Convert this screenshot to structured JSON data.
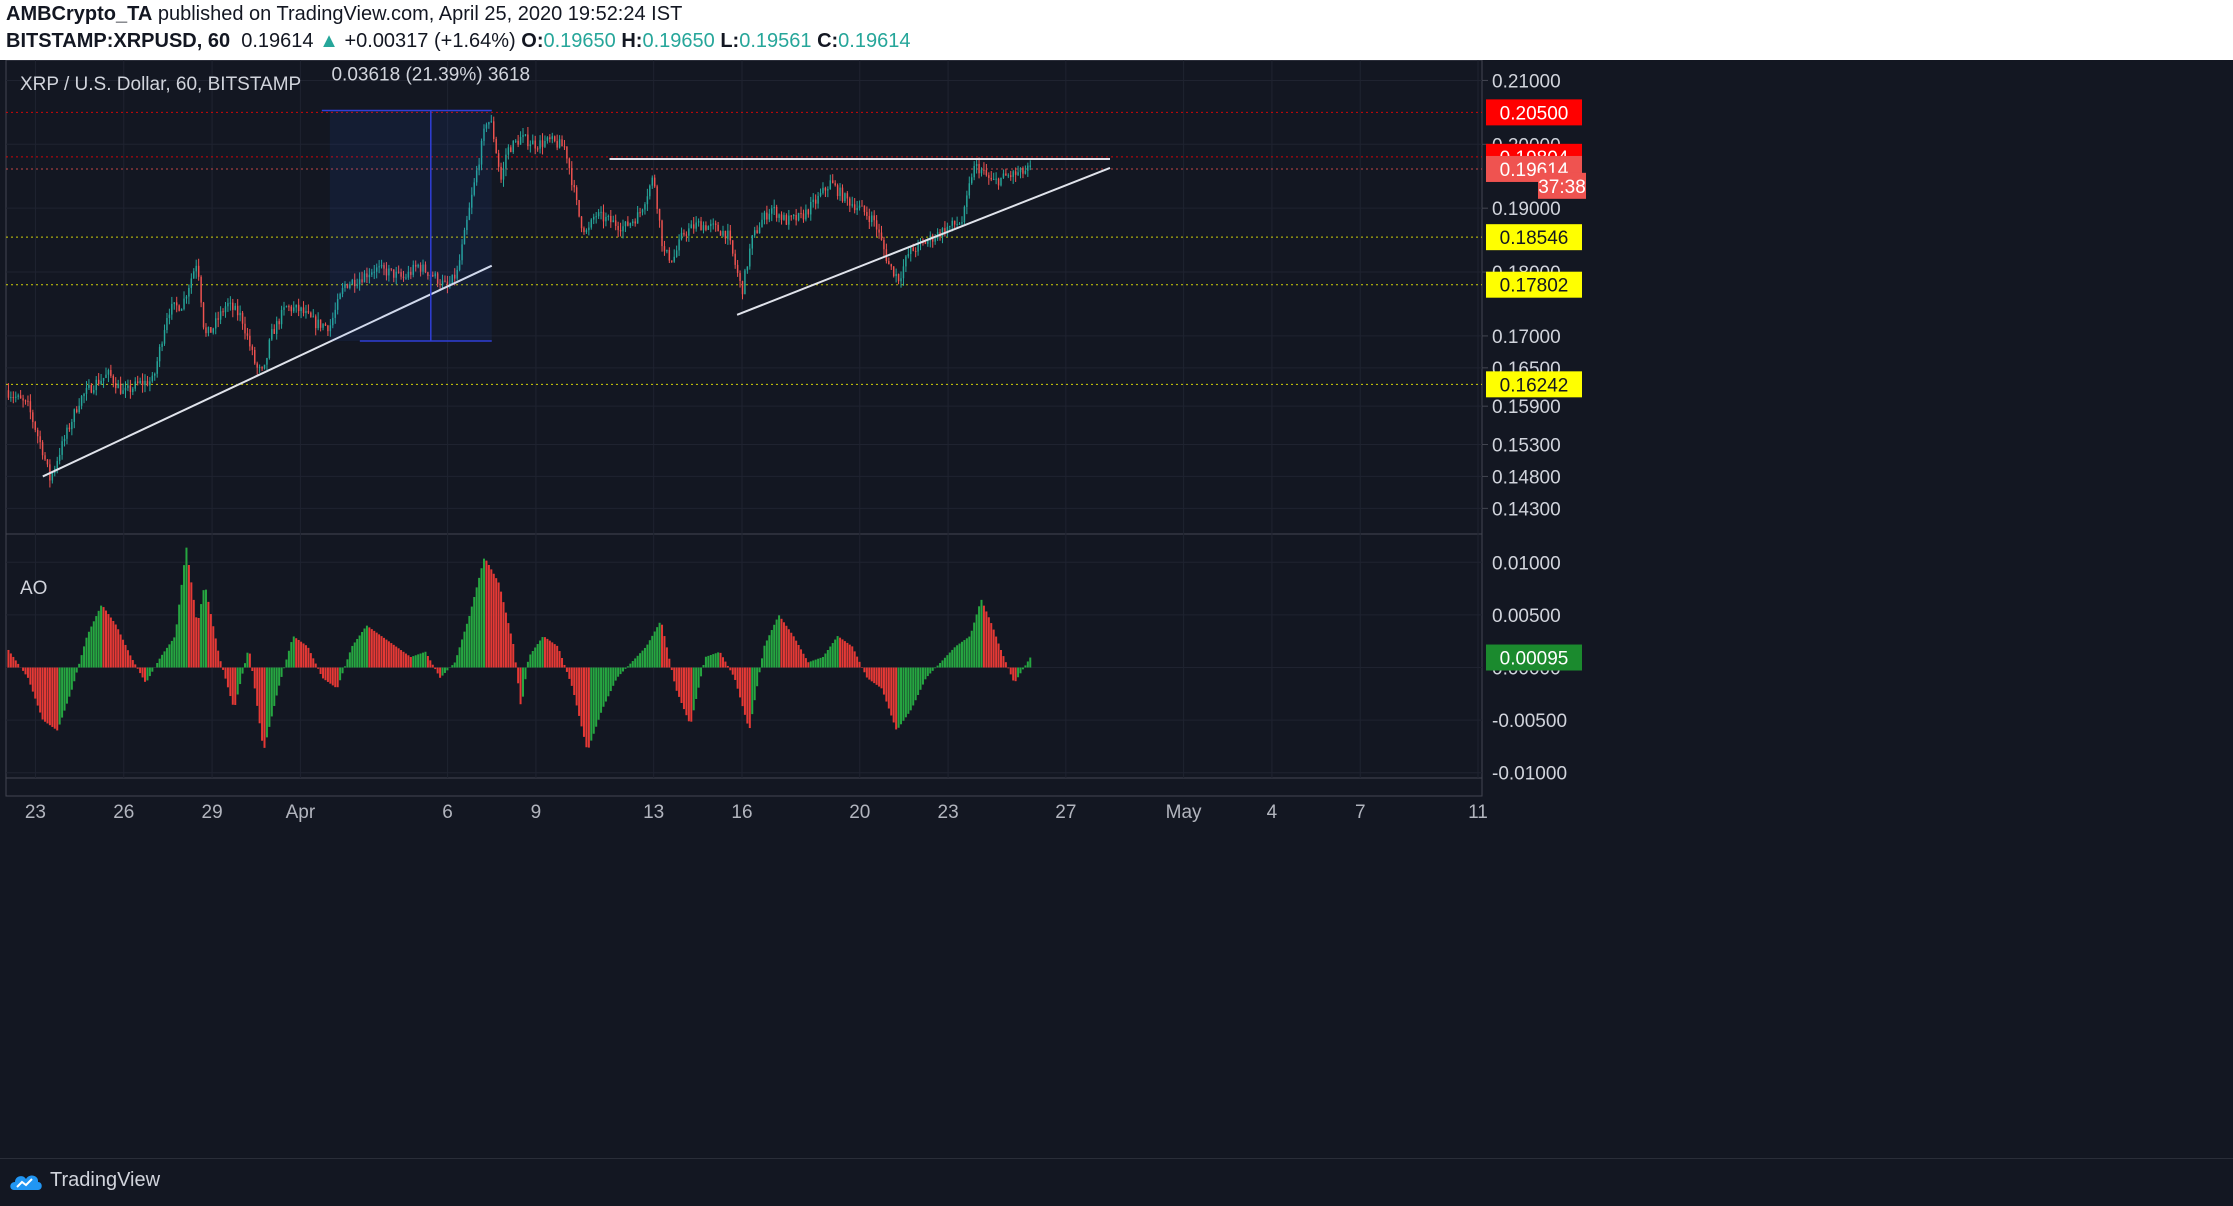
{
  "header": {
    "author": "AMBCrypto_TA",
    "published_text": "published on TradingView.com, April 25, 2020 19:52:24 IST",
    "symbol": "BITSTAMP:XRPUSD, 60",
    "last": "0.19614",
    "arrow": "▲",
    "change": "+0.00317 (+1.64%)",
    "o_label": "O:",
    "o_val": "0.19650",
    "h_label": "H:",
    "h_val": "0.19650",
    "l_label": "L:",
    "l_val": "0.19561",
    "c_label": "C:",
    "c_val": "0.19614"
  },
  "footer": {
    "brand": "TradingView"
  },
  "colors": {
    "background": "#131722",
    "up": "#26a69a",
    "down": "#ef5350",
    "ao_up": "#26a641",
    "ao_down": "#e53935",
    "red_label": "#ff0000",
    "yellow_label": "#ffff00"
  },
  "chart_data": [
    {
      "type": "candlestick",
      "title": "XRP / U.S. Dollar, 60, BITSTAMP",
      "ylim": [
        0.1393,
        0.2132
      ],
      "y_ticks": [
        "0.21000",
        "0.20000",
        "0.19000",
        "0.18000",
        "0.17000",
        "0.16500",
        "0.15900",
        "0.15300",
        "0.14800",
        "0.14300"
      ],
      "x_ticks": [
        "23",
        "26",
        "29",
        "Apr",
        "6",
        "9",
        "13",
        "16",
        "20",
        "23",
        "27",
        "May",
        "4",
        "7",
        "11"
      ],
      "x_tick_dates": [
        "2020-03-23",
        "2020-03-26",
        "2020-03-29",
        "2020-04-01",
        "2020-04-06",
        "2020-04-09",
        "2020-04-13",
        "2020-04-16",
        "2020-04-20",
        "2020-04-23",
        "2020-04-27",
        "2020-05-01",
        "2020-05-04",
        "2020-05-07",
        "2020-05-11"
      ],
      "x_range": [
        "2020-03-22",
        "2020-05-11"
      ],
      "price_points": [
        {
          "t": "2020-03-22",
          "p": 0.1615
        },
        {
          "t": "2020-03-22T18:00",
          "p": 0.159
        },
        {
          "t": "2020-03-23T06:00",
          "p": 0.152
        },
        {
          "t": "2020-03-23T12:00",
          "p": 0.1475
        },
        {
          "t": "2020-03-23T20:00",
          "p": 0.152
        },
        {
          "t": "2020-03-24T12:00",
          "p": 0.16
        },
        {
          "t": "2020-03-25",
          "p": 0.1625
        },
        {
          "t": "2020-03-25T12:00",
          "p": 0.164
        },
        {
          "t": "2020-03-26",
          "p": 0.161
        },
        {
          "t": "2020-03-26T12:00",
          "p": 0.1625
        },
        {
          "t": "2020-03-27",
          "p": 0.163
        },
        {
          "t": "2020-03-27T12:00",
          "p": 0.174
        },
        {
          "t": "2020-03-28",
          "p": 0.175
        },
        {
          "t": "2020-03-28T12:00",
          "p": 0.182
        },
        {
          "t": "2020-03-28T18:00",
          "p": 0.17
        },
        {
          "t": "2020-03-29",
          "p": 0.171
        },
        {
          "t": "2020-03-29T12:00",
          "p": 0.175
        },
        {
          "t": "2020-03-30",
          "p": 0.173
        },
        {
          "t": "2020-03-30T12:00",
          "p": 0.165
        },
        {
          "t": "2020-03-30T18:00",
          "p": 0.164
        },
        {
          "t": "2020-03-31",
          "p": 0.17
        },
        {
          "t": "2020-03-31T12:00",
          "p": 0.1745
        },
        {
          "t": "2020-04-01",
          "p": 0.174
        },
        {
          "t": "2020-04-01T12:00",
          "p": 0.172
        },
        {
          "t": "2020-04-02",
          "p": 0.1715
        },
        {
          "t": "2020-04-02T12:00",
          "p": 0.178
        },
        {
          "t": "2020-04-03",
          "p": 0.179
        },
        {
          "t": "2020-04-03T12:00",
          "p": 0.1805
        },
        {
          "t": "2020-04-04",
          "p": 0.18
        },
        {
          "t": "2020-04-04T12:00",
          "p": 0.179
        },
        {
          "t": "2020-04-05",
          "p": 0.181
        },
        {
          "t": "2020-04-05T12:00",
          "p": 0.1795
        },
        {
          "t": "2020-04-06",
          "p": 0.1775
        },
        {
          "t": "2020-04-06T08:00",
          "p": 0.18
        },
        {
          "t": "2020-04-06T16:00",
          "p": 0.188
        },
        {
          "t": "2020-04-07",
          "p": 0.196
        },
        {
          "t": "2020-04-07T08:00",
          "p": 0.204
        },
        {
          "t": "2020-04-07T12:00",
          "p": 0.203
        },
        {
          "t": "2020-04-07T20:00",
          "p": 0.194
        },
        {
          "t": "2020-04-08",
          "p": 0.199
        },
        {
          "t": "2020-04-08T12:00",
          "p": 0.201
        },
        {
          "t": "2020-04-09",
          "p": 0.2
        },
        {
          "t": "2020-04-09T12:00",
          "p": 0.2005
        },
        {
          "t": "2020-04-10",
          "p": 0.1995
        },
        {
          "t": "2020-04-10T12:00",
          "p": 0.188
        },
        {
          "t": "2020-04-10T18:00",
          "p": 0.186
        },
        {
          "t": "2020-04-11",
          "p": 0.189
        },
        {
          "t": "2020-04-11T12:00",
          "p": 0.188
        },
        {
          "t": "2020-04-12",
          "p": 0.187
        },
        {
          "t": "2020-04-12T12:00",
          "p": 0.189
        },
        {
          "t": "2020-04-13",
          "p": 0.195
        },
        {
          "t": "2020-04-13T08:00",
          "p": 0.183
        },
        {
          "t": "2020-04-13T16:00",
          "p": 0.182
        },
        {
          "t": "2020-04-14",
          "p": 0.186
        },
        {
          "t": "2020-04-14T12:00",
          "p": 0.1875
        },
        {
          "t": "2020-04-15",
          "p": 0.187
        },
        {
          "t": "2020-04-15T12:00",
          "p": 0.186
        },
        {
          "t": "2020-04-16",
          "p": 0.177
        },
        {
          "t": "2020-04-16T08:00",
          "p": 0.185
        },
        {
          "t": "2020-04-16T16:00",
          "p": 0.188
        },
        {
          "t": "2020-04-17",
          "p": 0.19
        },
        {
          "t": "2020-04-17T12:00",
          "p": 0.188
        },
        {
          "t": "2020-04-18",
          "p": 0.1885
        },
        {
          "t": "2020-04-18T12:00",
          "p": 0.191
        },
        {
          "t": "2020-04-19",
          "p": 0.194
        },
        {
          "t": "2020-04-19T12:00",
          "p": 0.1915
        },
        {
          "t": "2020-04-20",
          "p": 0.19
        },
        {
          "t": "2020-04-20T12:00",
          "p": 0.188
        },
        {
          "t": "2020-04-21",
          "p": 0.181
        },
        {
          "t": "2020-04-21T08:00",
          "p": 0.179
        },
        {
          "t": "2020-04-21T16:00",
          "p": 0.183
        },
        {
          "t": "2020-04-22",
          "p": 0.184
        },
        {
          "t": "2020-04-22T12:00",
          "p": 0.1855
        },
        {
          "t": "2020-04-23",
          "p": 0.187
        },
        {
          "t": "2020-04-23T12:00",
          "p": 0.188
        },
        {
          "t": "2020-04-23T20:00",
          "p": 0.196
        },
        {
          "t": "2020-04-24",
          "p": 0.1965
        },
        {
          "t": "2020-04-24T12:00",
          "p": 0.194
        },
        {
          "t": "2020-04-25",
          "p": 0.195
        },
        {
          "t": "2020-04-25T12:00",
          "p": 0.1955
        },
        {
          "t": "2020-04-25T19:00",
          "p": 0.19614
        }
      ],
      "price_labels": [
        {
          "text": "0.20500",
          "value": 0.205,
          "color": "#ff0000"
        },
        {
          "text": "0.19804",
          "value": 0.19804,
          "color": "#ff0000"
        },
        {
          "text": "0.19614",
          "value": 0.19614,
          "color": "#ef5350"
        },
        {
          "text": "37:38",
          "value": 0.1935,
          "color": "#ef5350"
        },
        {
          "text": "0.18546",
          "value": 0.18546,
          "color": "#ffff00"
        },
        {
          "text": "0.17802",
          "value": 0.17802,
          "color": "#ffff00"
        },
        {
          "text": "0.16242",
          "value": 0.16242,
          "color": "#ffff00"
        }
      ],
      "horizontal_levels": [
        {
          "value": 0.205,
          "color": "#ff0000"
        },
        {
          "value": 0.19804,
          "color": "#ff0000"
        },
        {
          "value": 0.19614,
          "color": "#ef5350"
        },
        {
          "value": 0.18546,
          "color": "#ffff00"
        },
        {
          "value": 0.17802,
          "color": "#ffff00"
        },
        {
          "value": 0.16242,
          "color": "#ffff00"
        }
      ],
      "trendlines": [
        {
          "from": {
            "t": "2020-03-23T06:00",
            "p": 0.148
          },
          "to": {
            "t": "2020-04-07T12:00",
            "p": 0.181
          }
        },
        {
          "from": {
            "t": "2020-04-15T20:00",
            "p": 0.1733
          },
          "to": {
            "t": "2020-04-28T12:00",
            "p": 0.1963
          }
        },
        {
          "from": {
            "t": "2020-04-11T12:00",
            "p": 0.1977
          },
          "to": {
            "t": "2020-04-28T12:00",
            "p": 0.1977
          }
        }
      ],
      "measure": {
        "label": "0.03618 (21.39%) 3618",
        "from": {
          "t": "2020-04-02",
          "p": 0.1692
        },
        "to": {
          "t": "2020-04-07T12:00",
          "p": 0.2053
        }
      }
    },
    {
      "type": "bar",
      "title": "AO",
      "ylim": [
        -0.0105,
        0.0125
      ],
      "y_ticks": [
        "0.01000",
        "0.00500",
        "0.00000",
        "-0.00500",
        "-0.01000"
      ],
      "last_value_label": "0.00095",
      "points": [
        {
          "t": "2020-03-22",
          "v": 0.002
        },
        {
          "t": "2020-03-22T18:00",
          "v": -0.001
        },
        {
          "t": "2020-03-23T06:00",
          "v": -0.005
        },
        {
          "t": "2020-03-23T18:00",
          "v": -0.006
        },
        {
          "t": "2020-03-24T06:00",
          "v": -0.002
        },
        {
          "t": "2020-03-24T18:00",
          "v": 0.003
        },
        {
          "t": "2020-03-25T06:00",
          "v": 0.006
        },
        {
          "t": "2020-03-25T18:00",
          "v": 0.004
        },
        {
          "t": "2020-03-26T06:00",
          "v": 0.001
        },
        {
          "t": "2020-03-26T18:00",
          "v": -0.0015
        },
        {
          "t": "2020-03-27T06:00",
          "v": 0.001
        },
        {
          "t": "2020-03-27T18:00",
          "v": 0.003
        },
        {
          "t": "2020-03-28T03:00",
          "v": 0.0115
        },
        {
          "t": "2020-03-28T12:00",
          "v": 0.004
        },
        {
          "t": "2020-03-28T18:00",
          "v": 0.008
        },
        {
          "t": "2020-03-29T06:00",
          "v": 0.001
        },
        {
          "t": "2020-03-29T18:00",
          "v": -0.004
        },
        {
          "t": "2020-03-30T06:00",
          "v": 0.002
        },
        {
          "t": "2020-03-30T18:00",
          "v": -0.008
        },
        {
          "t": "2020-03-31T06:00",
          "v": -0.002
        },
        {
          "t": "2020-03-31T18:00",
          "v": 0.003
        },
        {
          "t": "2020-04-01T06:00",
          "v": 0.002
        },
        {
          "t": "2020-04-01T18:00",
          "v": -0.001
        },
        {
          "t": "2020-04-02T06:00",
          "v": -0.002
        },
        {
          "t": "2020-04-02T18:00",
          "v": 0.002
        },
        {
          "t": "2020-04-03T06:00",
          "v": 0.004
        },
        {
          "t": "2020-04-03T18:00",
          "v": 0.003
        },
        {
          "t": "2020-04-04T06:00",
          "v": 0.002
        },
        {
          "t": "2020-04-04T18:00",
          "v": 0.001
        },
        {
          "t": "2020-04-05T06:00",
          "v": 0.0015
        },
        {
          "t": "2020-04-05T18:00",
          "v": -0.001
        },
        {
          "t": "2020-04-06T06:00",
          "v": 0.0005
        },
        {
          "t": "2020-04-06T18:00",
          "v": 0.005
        },
        {
          "t": "2020-04-07T06:00",
          "v": 0.0105
        },
        {
          "t": "2020-04-07T18:00",
          "v": 0.008
        },
        {
          "t": "2020-04-08T06:00",
          "v": 0.002
        },
        {
          "t": "2020-04-08T12:00",
          "v": -0.004
        },
        {
          "t": "2020-04-08T18:00",
          "v": 0.001
        },
        {
          "t": "2020-04-09T06:00",
          "v": 0.003
        },
        {
          "t": "2020-04-09T18:00",
          "v": 0.002
        },
        {
          "t": "2020-04-10T06:00",
          "v": -0.002
        },
        {
          "t": "2020-04-10T18:00",
          "v": -0.008
        },
        {
          "t": "2020-04-11T06:00",
          "v": -0.004
        },
        {
          "t": "2020-04-11T18:00",
          "v": -0.001
        },
        {
          "t": "2020-04-12T06:00",
          "v": 0.0005
        },
        {
          "t": "2020-04-12T18:00",
          "v": 0.002
        },
        {
          "t": "2020-04-13T06:00",
          "v": 0.0045
        },
        {
          "t": "2020-04-13T18:00",
          "v": -0.002
        },
        {
          "t": "2020-04-14T06:00",
          "v": -0.0055
        },
        {
          "t": "2020-04-14T18:00",
          "v": 0.001
        },
        {
          "t": "2020-04-15T06:00",
          "v": 0.0015
        },
        {
          "t": "2020-04-15T18:00",
          "v": -0.001
        },
        {
          "t": "2020-04-16T06:00",
          "v": -0.006
        },
        {
          "t": "2020-04-16T18:00",
          "v": 0.002
        },
        {
          "t": "2020-04-17T06:00",
          "v": 0.005
        },
        {
          "t": "2020-04-17T18:00",
          "v": 0.003
        },
        {
          "t": "2020-04-18T06:00",
          "v": 0.0005
        },
        {
          "t": "2020-04-18T18:00",
          "v": 0.001
        },
        {
          "t": "2020-04-19T06:00",
          "v": 0.003
        },
        {
          "t": "2020-04-19T18:00",
          "v": 0.002
        },
        {
          "t": "2020-04-20T06:00",
          "v": -0.001
        },
        {
          "t": "2020-04-20T18:00",
          "v": -0.002
        },
        {
          "t": "2020-04-21T06:00",
          "v": -0.006
        },
        {
          "t": "2020-04-21T18:00",
          "v": -0.004
        },
        {
          "t": "2020-04-22T06:00",
          "v": -0.001
        },
        {
          "t": "2020-04-22T18:00",
          "v": 0.0005
        },
        {
          "t": "2020-04-23T06:00",
          "v": 0.002
        },
        {
          "t": "2020-04-23T18:00",
          "v": 0.003
        },
        {
          "t": "2020-04-24T03:00",
          "v": 0.0065
        },
        {
          "t": "2020-04-24T12:00",
          "v": 0.004
        },
        {
          "t": "2020-04-24T18:00",
          "v": 0.002
        },
        {
          "t": "2020-04-25T06:00",
          "v": -0.0015
        },
        {
          "t": "2020-04-25T19:00",
          "v": 0.00095
        }
      ]
    }
  ]
}
